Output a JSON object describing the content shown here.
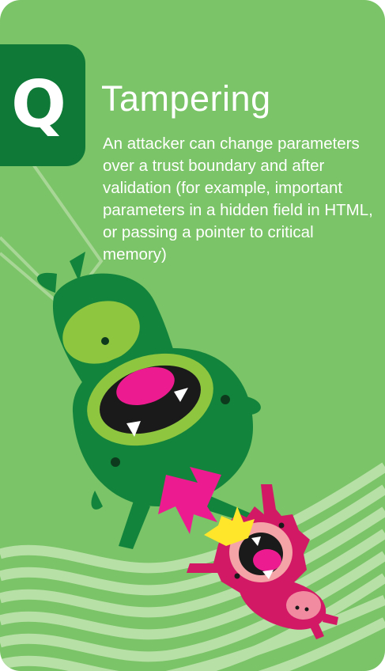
{
  "card": {
    "rank": "Q",
    "title": "Tampering",
    "description": "An attacker can change parameters over a trust boundary and after validation (for example, important parameters in a hidden field in HTML, or passing a pointer to critical memory)"
  },
  "colors": {
    "background": "#7bc467",
    "badge": "#0f7a37",
    "wave": "#b6e0a6",
    "monster_large": "#13843c",
    "monster_small": "#d21966",
    "tongue": "#ec1b8f",
    "crown": "#ffe62a"
  },
  "illustration": {
    "subject": [
      "green-monster",
      "pink-monster",
      "crown",
      "wavy-stripes"
    ]
  }
}
